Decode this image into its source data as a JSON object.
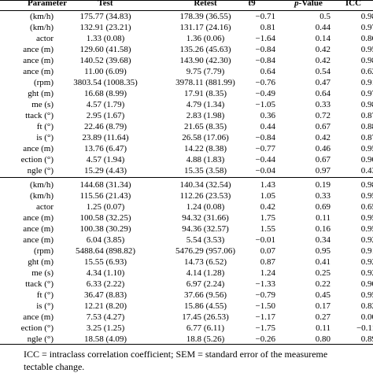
{
  "table": {
    "header": {
      "parameter": "Parameter",
      "test": "Test",
      "retest": "Retest",
      "t9": "t9",
      "p_prefix": "p",
      "p_suffix": "-Value",
      "icc": "ICC"
    },
    "section1": [
      [
        "(km/h)",
        "175.77 (34.83)",
        "178.39 (36.55)",
        "−0.71",
        "0.5",
        "0.98"
      ],
      [
        "(km/h)",
        "132.91 (23.21)",
        "131.17 (24.16)",
        "0.81",
        "0.44",
        "0.97"
      ],
      [
        "actor",
        "1.33 (0.08)",
        "1.36 (0.06)",
        "−1.64",
        "0.14",
        "0.86"
      ],
      [
        "ance (m)",
        "129.60 (41.58)",
        "135.26 (45.63)",
        "−0.84",
        "0.42",
        "0.95"
      ],
      [
        "ance (m)",
        "140.52 (39.68)",
        "143.90 (42.30)",
        "−0.84",
        "0.42",
        "0.98"
      ],
      [
        "ance (m)",
        "11.00 (6.09)",
        "9.75 (7.79)",
        "0.64",
        "0.54",
        "0.62"
      ],
      [
        "(rpm)",
        "3803.54 (1008.35)",
        "3978.11 (881.99)",
        "−0.76",
        "0.47",
        "0.91"
      ],
      [
        "ght (m)",
        "16.68 (8.99)",
        "17.91 (8.35)",
        "−0.49",
        "0.64",
        "0.97"
      ],
      [
        "me (s)",
        "4.57 (1.79)",
        "4.79 (1.34)",
        "−1.05",
        "0.33",
        "0.98"
      ],
      [
        "ttack (°)",
        "2.95 (1.67)",
        "2.83 (1.98)",
        "0.36",
        "0.72",
        "0.87"
      ],
      [
        "ft (°)",
        "22.46 (8.79)",
        "21.65 (8.35)",
        "0.44",
        "0.67",
        "0.88"
      ],
      [
        "is (°)",
        "23.89 (11.64)",
        "26.58 (17.06)",
        "−0.84",
        "0.42",
        "0.87"
      ],
      [
        "ance (m)",
        "13.76 (6.47)",
        "14.22 (8.38)",
        "−0.77",
        "0.46",
        "0.95"
      ],
      [
        "ection (°)",
        "4.57 (1.94)",
        "4.88 (1.83)",
        "−0.44",
        "0.67",
        "0.90"
      ],
      [
        "ngle (°)",
        "15.29 (4.43)",
        "15.35 (3.58)",
        "−0.04",
        "0.97",
        "0.43"
      ]
    ],
    "section2": [
      [
        "(km/h)",
        "144.68 (31.34)",
        "140.34 (32.54)",
        "1.43",
        "0.19",
        "0.98"
      ],
      [
        "(km/h)",
        "115.56 (21.43)",
        "112.26 (23.53)",
        "1.05",
        "0.33",
        "0.95"
      ],
      [
        "actor",
        "1.25 (0.07)",
        "1.24 (0.08)",
        "0.42",
        "0.69",
        "0.65"
      ],
      [
        "ance (m)",
        "100.58 (32.25)",
        "94.32 (31.66)",
        "1.75",
        "0.11",
        "0.95"
      ],
      [
        "ance (m)",
        "100.38 (30.29)",
        "94.36 (32.57)",
        "1.55",
        "0.16",
        "0.95"
      ],
      [
        "ance (m)",
        "6.04 (3.85)",
        "5.54 (3.53)",
        "−0.01",
        "0.34",
        "0.92"
      ],
      [
        "(rpm)",
        "5488.64 (898.82)",
        "5476.29 (957.06)",
        "0.07",
        "0.95",
        "0.91"
      ],
      [
        "ght (m)",
        "15.55 (6.93)",
        "14.73 (6.52)",
        "0.87",
        "0.41",
        "0.92"
      ],
      [
        "me (s)",
        "4.34 (1.10)",
        "4.14 (1.28)",
        "1.24",
        "0.25",
        "0.92"
      ],
      [
        "ttack (°)",
        "6.33 (2.22)",
        "6.97 (2.24)",
        "−1.33",
        "0.22",
        "0.90"
      ],
      [
        "ft (°)",
        "36.47 (8.83)",
        "37.66 (9.56)",
        "−0.79",
        "0.45",
        "0.95"
      ],
      [
        "is (°)",
        "12.21 (8.20)",
        "15.86 (4.55)",
        "−1.50",
        "0.17",
        "0.82"
      ],
      [
        "ance (m)",
        "7.53 (4.27)",
        "17.45 (26.53)",
        "−1.17",
        "0.27",
        "0.00"
      ],
      [
        "ection (°)",
        "3.25 (1.25)",
        "6.77 (6.11)",
        "−1.75",
        "0.11",
        "−0.11"
      ],
      [
        "ngle (°)",
        "18.58 (4.09)",
        "18.8 (5.26)",
        "−0.26",
        "0.80",
        "0.89"
      ]
    ]
  },
  "footnote": {
    "line1": "ICC = intraclass correlation coefficient; SEM = standard error of the measureme",
    "line2": "tectable change."
  }
}
